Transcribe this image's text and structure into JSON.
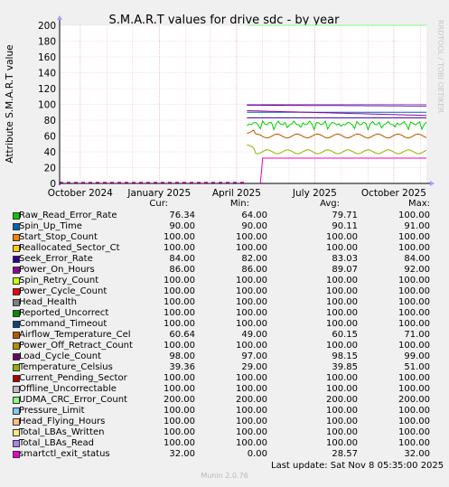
{
  "side_label": "RRDTOOL / TOBI OETIKER",
  "legend_headers": {
    "cur": "Cur:",
    "min": "Min:",
    "avg": "Avg:",
    "max": "Max:"
  },
  "last_update": "Last update: Sat Nov  8 05:35:00 2025",
  "footer": "Munin 2.0.76",
  "chart_data": {
    "type": "line",
    "title": "S.M.A.R.T values for drive sdc - by year",
    "ylabel": "Attribute S.M.A.R.T value",
    "xlabel": "",
    "ylim": [
      0,
      200
    ],
    "yticks": [
      0,
      20,
      40,
      60,
      80,
      100,
      120,
      140,
      160,
      180,
      200
    ],
    "xlim": [
      "2024-09-07",
      "2025-11-08"
    ],
    "xticks": [
      {
        "label": "October 2024",
        "date": "2024-10-01"
      },
      {
        "label": "January 2025",
        "date": "2025-01-01"
      },
      {
        "label": "April 2025",
        "date": "2025-04-01"
      },
      {
        "label": "July 2025",
        "date": "2025-07-01"
      },
      {
        "label": "October 2025",
        "date": "2025-10-01"
      }
    ],
    "data_start": "2025-04-13",
    "grid": true,
    "series": [
      {
        "name": "Raw_Read_Error_Rate",
        "color": "#00cc00",
        "cur": "76.34",
        "min": "64.00",
        "avg": "79.71",
        "max": "100.00",
        "base": 79,
        "jitter": "saw"
      },
      {
        "name": "Spin_Up_Time",
        "color": "#0066b3",
        "cur": "90.00",
        "min": "90.00",
        "avg": "90.11",
        "max": "91.00",
        "base": 90
      },
      {
        "name": "Start_Stop_Count",
        "color": "#ff8000",
        "cur": "100.00",
        "min": "100.00",
        "avg": "100.00",
        "max": "100.00",
        "base": 100
      },
      {
        "name": "Reallocated_Sector_Ct",
        "color": "#ffcc00",
        "cur": "100.00",
        "min": "100.00",
        "avg": "100.00",
        "max": "100.00",
        "base": 100
      },
      {
        "name": "Seek_Error_Rate",
        "color": "#330099",
        "cur": "84.00",
        "min": "82.00",
        "avg": "83.03",
        "max": "84.00",
        "base": 83
      },
      {
        "name": "Power_On_Hours",
        "color": "#990099",
        "cur": "86.00",
        "min": "86.00",
        "avg": "89.07",
        "max": "92.00",
        "base": 92,
        "end": 86
      },
      {
        "name": "Spin_Retry_Count",
        "color": "#ccff00",
        "cur": "100.00",
        "min": "100.00",
        "avg": "100.00",
        "max": "100.00",
        "base": 100
      },
      {
        "name": "Power_Cycle_Count",
        "color": "#ff0000",
        "cur": "100.00",
        "min": "100.00",
        "avg": "100.00",
        "max": "100.00",
        "base": 100
      },
      {
        "name": "Head_Health",
        "color": "#808080",
        "cur": "100.00",
        "min": "100.00",
        "avg": "100.00",
        "max": "100.00",
        "base": 100
      },
      {
        "name": "Reported_Uncorrect",
        "color": "#008f00",
        "cur": "100.00",
        "min": "100.00",
        "avg": "100.00",
        "max": "100.00",
        "base": 100
      },
      {
        "name": "Command_Timeout",
        "color": "#00487d",
        "cur": "100.00",
        "min": "100.00",
        "avg": "100.00",
        "max": "100.00",
        "base": 100
      },
      {
        "name": "Airflow_Temperature_Cel",
        "color": "#b35a00",
        "cur": "60.64",
        "min": "49.00",
        "avg": "60.15",
        "max": "71.00",
        "base": 60,
        "jitter": "wave"
      },
      {
        "name": "Power_Off_Retract_Count",
        "color": "#b38f00",
        "cur": "100.00",
        "min": "100.00",
        "avg": "100.00",
        "max": "100.00",
        "base": 100
      },
      {
        "name": "Load_Cycle_Count",
        "color": "#6b006b",
        "cur": "98.00",
        "min": "97.00",
        "avg": "98.15",
        "max": "99.00",
        "base": 99,
        "end": 98
      },
      {
        "name": "Temperature_Celsius",
        "color": "#8fb300",
        "cur": "39.36",
        "min": "29.00",
        "avg": "39.85",
        "max": "51.00",
        "base": 40,
        "jitter": "wave"
      },
      {
        "name": "Current_Pending_Sector",
        "color": "#b30000",
        "cur": "100.00",
        "min": "100.00",
        "avg": "100.00",
        "max": "100.00",
        "base": 100
      },
      {
        "name": "Offline_Uncorrectable",
        "color": "#bebebe",
        "cur": "100.00",
        "min": "100.00",
        "avg": "100.00",
        "max": "100.00",
        "base": 100
      },
      {
        "name": "UDMA_CRC_Error_Count",
        "color": "#80ff80",
        "cur": "200.00",
        "min": "200.00",
        "avg": "200.00",
        "max": "200.00",
        "base": 200
      },
      {
        "name": "Pressure_Limit",
        "color": "#80c9ff",
        "cur": "100.00",
        "min": "100.00",
        "avg": "100.00",
        "max": "100.00",
        "base": 100
      },
      {
        "name": "Head_Flying_Hours",
        "color": "#ffc080",
        "cur": "100.00",
        "min": "100.00",
        "avg": "100.00",
        "max": "100.00",
        "base": 100
      },
      {
        "name": "Total_LBAs_Written",
        "color": "#ffe680",
        "cur": "100.00",
        "min": "100.00",
        "avg": "100.00",
        "max": "100.00",
        "base": 100
      },
      {
        "name": "Total_LBAs_Read",
        "color": "#aa80ff",
        "cur": "100.00",
        "min": "100.00",
        "avg": "100.00",
        "max": "100.00",
        "base": 100
      },
      {
        "name": "smartctl_exit_status",
        "color": "#ee00cc",
        "cur": "32.00",
        "min": "0.00",
        "avg": "28.57",
        "max": "32.00",
        "base": 32,
        "zero_from": "2025-04-13",
        "zero_to": "2025-04-30",
        "dashed_before": true
      }
    ]
  }
}
